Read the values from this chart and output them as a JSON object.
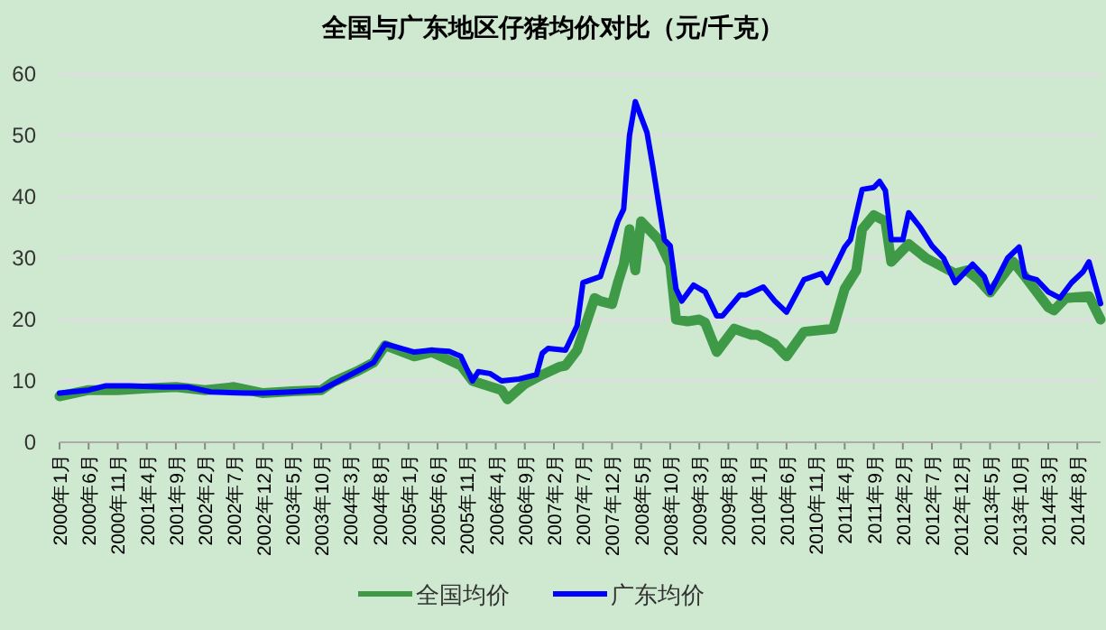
{
  "chart_data": {
    "type": "line",
    "title": "全国与广东地区仔猪均价对比（元/千克）",
    "xlim": [
      "2000-01",
      "2014-12"
    ],
    "xticks": [
      {
        "value": "2000-01",
        "label": "2000年1月"
      },
      {
        "value": "2000-06",
        "label": "2000年6月"
      },
      {
        "value": "2000-11",
        "label": "2000年11月"
      },
      {
        "value": "2001-04",
        "label": "2001年4月"
      },
      {
        "value": "2001-09",
        "label": "2001年9月"
      },
      {
        "value": "2002-02",
        "label": "2002年2月"
      },
      {
        "value": "2002-07",
        "label": "2002年7月"
      },
      {
        "value": "2002-12",
        "label": "2002年12月"
      },
      {
        "value": "2003-05",
        "label": "2003年5月"
      },
      {
        "value": "2003-10",
        "label": "2003年10月"
      },
      {
        "value": "2004-03",
        "label": "2004年3月"
      },
      {
        "value": "2004-08",
        "label": "2004年8月"
      },
      {
        "value": "2005-01",
        "label": "2005年1月"
      },
      {
        "value": "2005-06",
        "label": "2005年6月"
      },
      {
        "value": "2005-11",
        "label": "2005年11月"
      },
      {
        "value": "2006-04",
        "label": "2006年4月"
      },
      {
        "value": "2006-09",
        "label": "2006年9月"
      },
      {
        "value": "2007-02",
        "label": "2007年2月"
      },
      {
        "value": "2007-07",
        "label": "2007年7月"
      },
      {
        "value": "2007-12",
        "label": "2007年12月"
      },
      {
        "value": "2008-05",
        "label": "2008年5月"
      },
      {
        "value": "2008-10",
        "label": "2008年10月"
      },
      {
        "value": "2009-03",
        "label": "2009年3月"
      },
      {
        "value": "2009-08",
        "label": "2009年8月"
      },
      {
        "value": "2010-01",
        "label": "2010年1月"
      },
      {
        "value": "2010-06",
        "label": "2010年6月"
      },
      {
        "value": "2010-11",
        "label": "2010年11月"
      },
      {
        "value": "2011-04",
        "label": "2011年4月"
      },
      {
        "value": "2011-09",
        "label": "2011年9月"
      },
      {
        "value": "2012-02",
        "label": "2012年2月"
      },
      {
        "value": "2012-07",
        "label": "2012年7月"
      },
      {
        "value": "2012-12",
        "label": "2012年12月"
      },
      {
        "value": "2013-05",
        "label": "2013年5月"
      },
      {
        "value": "2013-10",
        "label": "2013年10月"
      },
      {
        "value": "2014-03",
        "label": "2014年3月"
      },
      {
        "value": "2014-08",
        "label": "2014年8月"
      }
    ],
    "ylim": [
      0,
      60
    ],
    "yticks": [
      0,
      10,
      20,
      30,
      40,
      50,
      60
    ],
    "grid": "y",
    "legend": "bottom",
    "marker": "none",
    "line_style": "solid",
    "series": [
      {
        "name": "全国均价",
        "color": "#3f9a48",
        "x": [
          "2000-01",
          "2000-06",
          "2000-11",
          "2001-04",
          "2001-09",
          "2002-02",
          "2002-07",
          "2002-12",
          "2003-05",
          "2003-10",
          "2003-12",
          "2004-04",
          "2004-07",
          "2004-09",
          "2005-02",
          "2005-05",
          "2005-10",
          "2005-12",
          "2006-05",
          "2006-06",
          "2006-09",
          "2006-12",
          "2007-03",
          "2007-04",
          "2007-06",
          "2007-09",
          "2007-10",
          "2007-12",
          "2008-01",
          "2008-02",
          "2008-03",
          "2008-04",
          "2008-05",
          "2008-08",
          "2008-10",
          "2008-11",
          "2009-01",
          "2009-03",
          "2009-04",
          "2009-06",
          "2009-09",
          "2009-12",
          "2010-01",
          "2010-04",
          "2010-06",
          "2010-09",
          "2011-02",
          "2011-04",
          "2011-06",
          "2011-07",
          "2011-09",
          "2011-11",
          "2011-12",
          "2012-03",
          "2012-06",
          "2012-11",
          "2013-01",
          "2013-03",
          "2013-05",
          "2013-09",
          "2013-11",
          "2014-03",
          "2014-04",
          "2014-06",
          "2014-10",
          "2014-12"
        ],
        "values": [
          7.5,
          8.5,
          8.5,
          8.8,
          9,
          8.5,
          9,
          8,
          8.3,
          8.5,
          9.8,
          11.5,
          13,
          15.8,
          14,
          14.7,
          12.5,
          10,
          8.5,
          7,
          9.5,
          11,
          12.3,
          12.5,
          15,
          23.5,
          23,
          22.5,
          26,
          29,
          34.7,
          28,
          36,
          33,
          29,
          20,
          19.7,
          20,
          19.5,
          14.7,
          18.5,
          17.5,
          17.5,
          16,
          14,
          18,
          18.5,
          25,
          28,
          34.7,
          37,
          36,
          29.4,
          32.3,
          30,
          27.5,
          28,
          26.5,
          24.4,
          29.4,
          27,
          22,
          21.5,
          23.5,
          23.8,
          20
        ]
      },
      {
        "name": "广东均价",
        "color": "#0000ff",
        "x": [
          "2000-01",
          "2000-06",
          "2000-09",
          "2001-01",
          "2001-07",
          "2001-11",
          "2002-03",
          "2002-09",
          "2002-12",
          "2003-05",
          "2003-10",
          "2004-01",
          "2004-04",
          "2004-07",
          "2004-09",
          "2004-11",
          "2005-02",
          "2005-05",
          "2005-08",
          "2005-10",
          "2005-12",
          "2006-01",
          "2006-03",
          "2006-05",
          "2006-08",
          "2006-11",
          "2006-12",
          "2007-01",
          "2007-04",
          "2007-06",
          "2007-07",
          "2007-10",
          "2008-01",
          "2008-02",
          "2008-03",
          "2008-04",
          "2008-06",
          "2008-07",
          "2008-08",
          "2008-09",
          "2008-10",
          "2008-11",
          "2008-12",
          "2009-02",
          "2009-04",
          "2009-06",
          "2009-07",
          "2009-10",
          "2009-11",
          "2010-02",
          "2010-04",
          "2010-06",
          "2010-09",
          "2010-12",
          "2011-01",
          "2011-04",
          "2011-05",
          "2011-07",
          "2011-09",
          "2011-10",
          "2011-11",
          "2011-12",
          "2012-02",
          "2012-03",
          "2012-05",
          "2012-07",
          "2012-09",
          "2012-11",
          "2013-02",
          "2013-04",
          "2013-05",
          "2013-08",
          "2013-10",
          "2013-11",
          "2014-01",
          "2014-03",
          "2014-05",
          "2014-07",
          "2014-09",
          "2014-10",
          "2014-12"
        ],
        "values": [
          8,
          8.5,
          9.2,
          9.2,
          9,
          9,
          8.2,
          8,
          8,
          8.2,
          8.5,
          10,
          11.5,
          13,
          16,
          15.5,
          14.7,
          15,
          14.8,
          14,
          10,
          11.5,
          11.2,
          10,
          10.3,
          11,
          14.5,
          15.3,
          15,
          19,
          26,
          27,
          36,
          38,
          50,
          55.5,
          50.5,
          45,
          39,
          33,
          32,
          25,
          23,
          25.6,
          24.5,
          20.6,
          20.6,
          24,
          24,
          25.3,
          23,
          21.2,
          26.5,
          27.5,
          26,
          31.8,
          33,
          41.2,
          41.5,
          42.5,
          41,
          33,
          33,
          37.4,
          35,
          32,
          30,
          26,
          29,
          27,
          24.4,
          30,
          31.8,
          27,
          26.5,
          24.5,
          23.5,
          26,
          27.8,
          29.4,
          22.6
        ]
      }
    ]
  }
}
